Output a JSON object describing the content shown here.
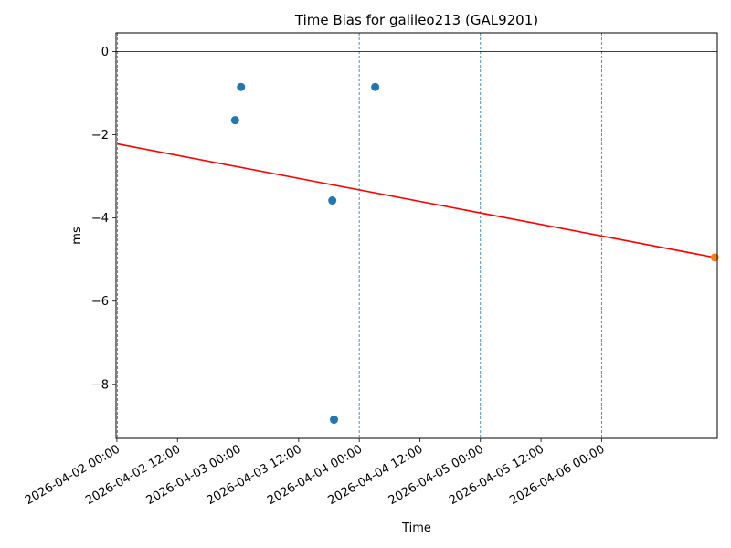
{
  "chart_data": {
    "type": "scatter",
    "title": "Time Bias for galileo213 (GAL9201)",
    "xlabel": "Time",
    "ylabel": "ms",
    "x_axis_type": "datetime",
    "xlim": [
      "2026-04-01T23:50",
      "2026-04-06T22:55"
    ],
    "ylim": [
      -9.3,
      0.45
    ],
    "x_ticks": [
      {
        "value": "2026-04-02T00:00",
        "label": "2026-04-02 00:00"
      },
      {
        "value": "2026-04-02T12:00",
        "label": "2026-04-02 12:00"
      },
      {
        "value": "2026-04-03T00:00",
        "label": "2026-04-03 00:00"
      },
      {
        "value": "2026-04-03T12:00",
        "label": "2026-04-03 12:00"
      },
      {
        "value": "2026-04-04T00:00",
        "label": "2026-04-04 00:00"
      },
      {
        "value": "2026-04-04T12:00",
        "label": "2026-04-04 12:00"
      },
      {
        "value": "2026-04-05T00:00",
        "label": "2026-04-05 00:00"
      },
      {
        "value": "2026-04-05T12:00",
        "label": "2026-04-05 12:00"
      },
      {
        "value": "2026-04-06T00:00",
        "label": "2026-04-06 00:00"
      }
    ],
    "y_ticks": [
      {
        "value": 0,
        "label": "0"
      },
      {
        "value": -2,
        "label": "−2"
      },
      {
        "value": -4,
        "label": "−4"
      },
      {
        "value": -6,
        "label": "−6"
      },
      {
        "value": -8,
        "label": "−8"
      }
    ],
    "vertical_lines": [
      "2026-04-02T00:07",
      "2026-04-03T00:00",
      "2026-04-04T00:00",
      "2026-04-05T00:00",
      "2026-04-06T00:00"
    ],
    "vertical_line_color": "#1f77b4",
    "zero_line": 0,
    "series": [
      {
        "type": "scatter",
        "color": "#1f77b4",
        "points": [
          {
            "x": "2026-04-02T23:25",
            "y": -1.65
          },
          {
            "x": "2026-04-03T00:35",
            "y": -0.85
          },
          {
            "x": "2026-04-03T18:40",
            "y": -3.58
          },
          {
            "x": "2026-04-03T19:00",
            "y": -8.85
          },
          {
            "x": "2026-04-04T03:10",
            "y": -0.85
          }
        ]
      },
      {
        "type": "line",
        "color": "#ff0000",
        "points": [
          {
            "x": "2026-04-02T00:07",
            "y": -2.22
          },
          {
            "x": "2026-04-06T22:25",
            "y": -4.95
          }
        ]
      },
      {
        "type": "scatter",
        "color": "#ff7f0e",
        "points": [
          {
            "x": "2026-04-06T22:25",
            "y": -4.95
          }
        ]
      }
    ],
    "grid": false,
    "legend": "none"
  }
}
